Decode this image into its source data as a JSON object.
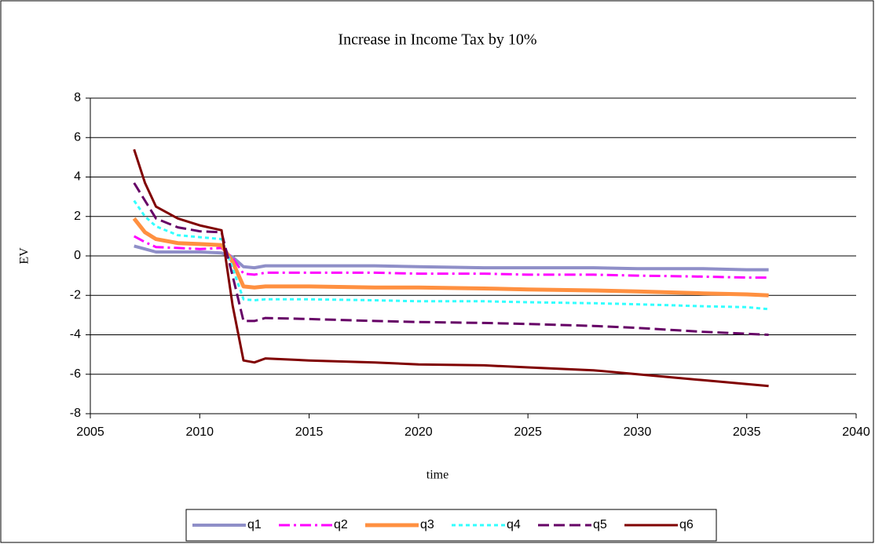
{
  "chart_data": {
    "type": "line",
    "title": "Increase in Income Tax by 10%",
    "xlabel": "time",
    "ylabel": "EV",
    "x": [
      2007,
      2007.5,
      2008,
      2009,
      2010,
      2011,
      2011.5,
      2012,
      2012.5,
      2013,
      2015,
      2018,
      2020,
      2023,
      2025,
      2028,
      2030,
      2033,
      2035,
      2036
    ],
    "series": [
      {
        "name": "q1",
        "color": "#8f8fc8",
        "values": [
          0.5,
          0.35,
          0.2,
          0.2,
          0.2,
          0.15,
          -0.05,
          -0.55,
          -0.6,
          -0.5,
          -0.5,
          -0.5,
          -0.55,
          -0.6,
          -0.6,
          -0.6,
          -0.65,
          -0.65,
          -0.7,
          -0.7
        ]
      },
      {
        "name": "q2",
        "color": "#ff00ff",
        "values": [
          1.0,
          0.7,
          0.45,
          0.4,
          0.35,
          0.4,
          -0.1,
          -0.9,
          -0.95,
          -0.85,
          -0.85,
          -0.85,
          -0.9,
          -0.9,
          -0.95,
          -0.95,
          -1.0,
          -1.05,
          -1.1,
          -1.1
        ]
      },
      {
        "name": "q3",
        "color": "#ff9040",
        "values": [
          1.9,
          1.2,
          0.85,
          0.65,
          0.6,
          0.55,
          -0.3,
          -1.55,
          -1.6,
          -1.55,
          -1.55,
          -1.6,
          -1.6,
          -1.65,
          -1.7,
          -1.75,
          -1.8,
          -1.9,
          -1.95,
          -2.0
        ]
      },
      {
        "name": "q4",
        "color": "#33ffff",
        "values": [
          2.8,
          2.0,
          1.5,
          1.05,
          0.95,
          0.85,
          -0.6,
          -2.2,
          -2.25,
          -2.2,
          -2.2,
          -2.25,
          -2.3,
          -2.3,
          -2.35,
          -2.4,
          -2.45,
          -2.55,
          -2.6,
          -2.7
        ]
      },
      {
        "name": "q5",
        "color": "#660066",
        "values": [
          3.7,
          2.8,
          1.9,
          1.45,
          1.25,
          1.2,
          -1.0,
          -3.3,
          -3.3,
          -3.15,
          -3.2,
          -3.3,
          -3.35,
          -3.4,
          -3.45,
          -3.55,
          -3.65,
          -3.85,
          -3.95,
          -4.0
        ]
      },
      {
        "name": "q6",
        "color": "#800000",
        "values": [
          5.4,
          3.7,
          2.5,
          1.9,
          1.55,
          1.3,
          -2.5,
          -5.3,
          -5.4,
          -5.2,
          -5.3,
          -5.4,
          -5.5,
          -5.55,
          -5.65,
          -5.8,
          -6.0,
          -6.3,
          -6.5,
          -6.6
        ]
      }
    ],
    "xlim": [
      2005,
      2040
    ],
    "xticks": [
      2005,
      2010,
      2015,
      2020,
      2025,
      2030,
      2035,
      2040
    ],
    "ylim": [
      -8,
      8
    ],
    "yticks": [
      -8,
      -6,
      -4,
      -2,
      0,
      2,
      4,
      6,
      8
    ],
    "grid": true,
    "legend": "bottom"
  }
}
